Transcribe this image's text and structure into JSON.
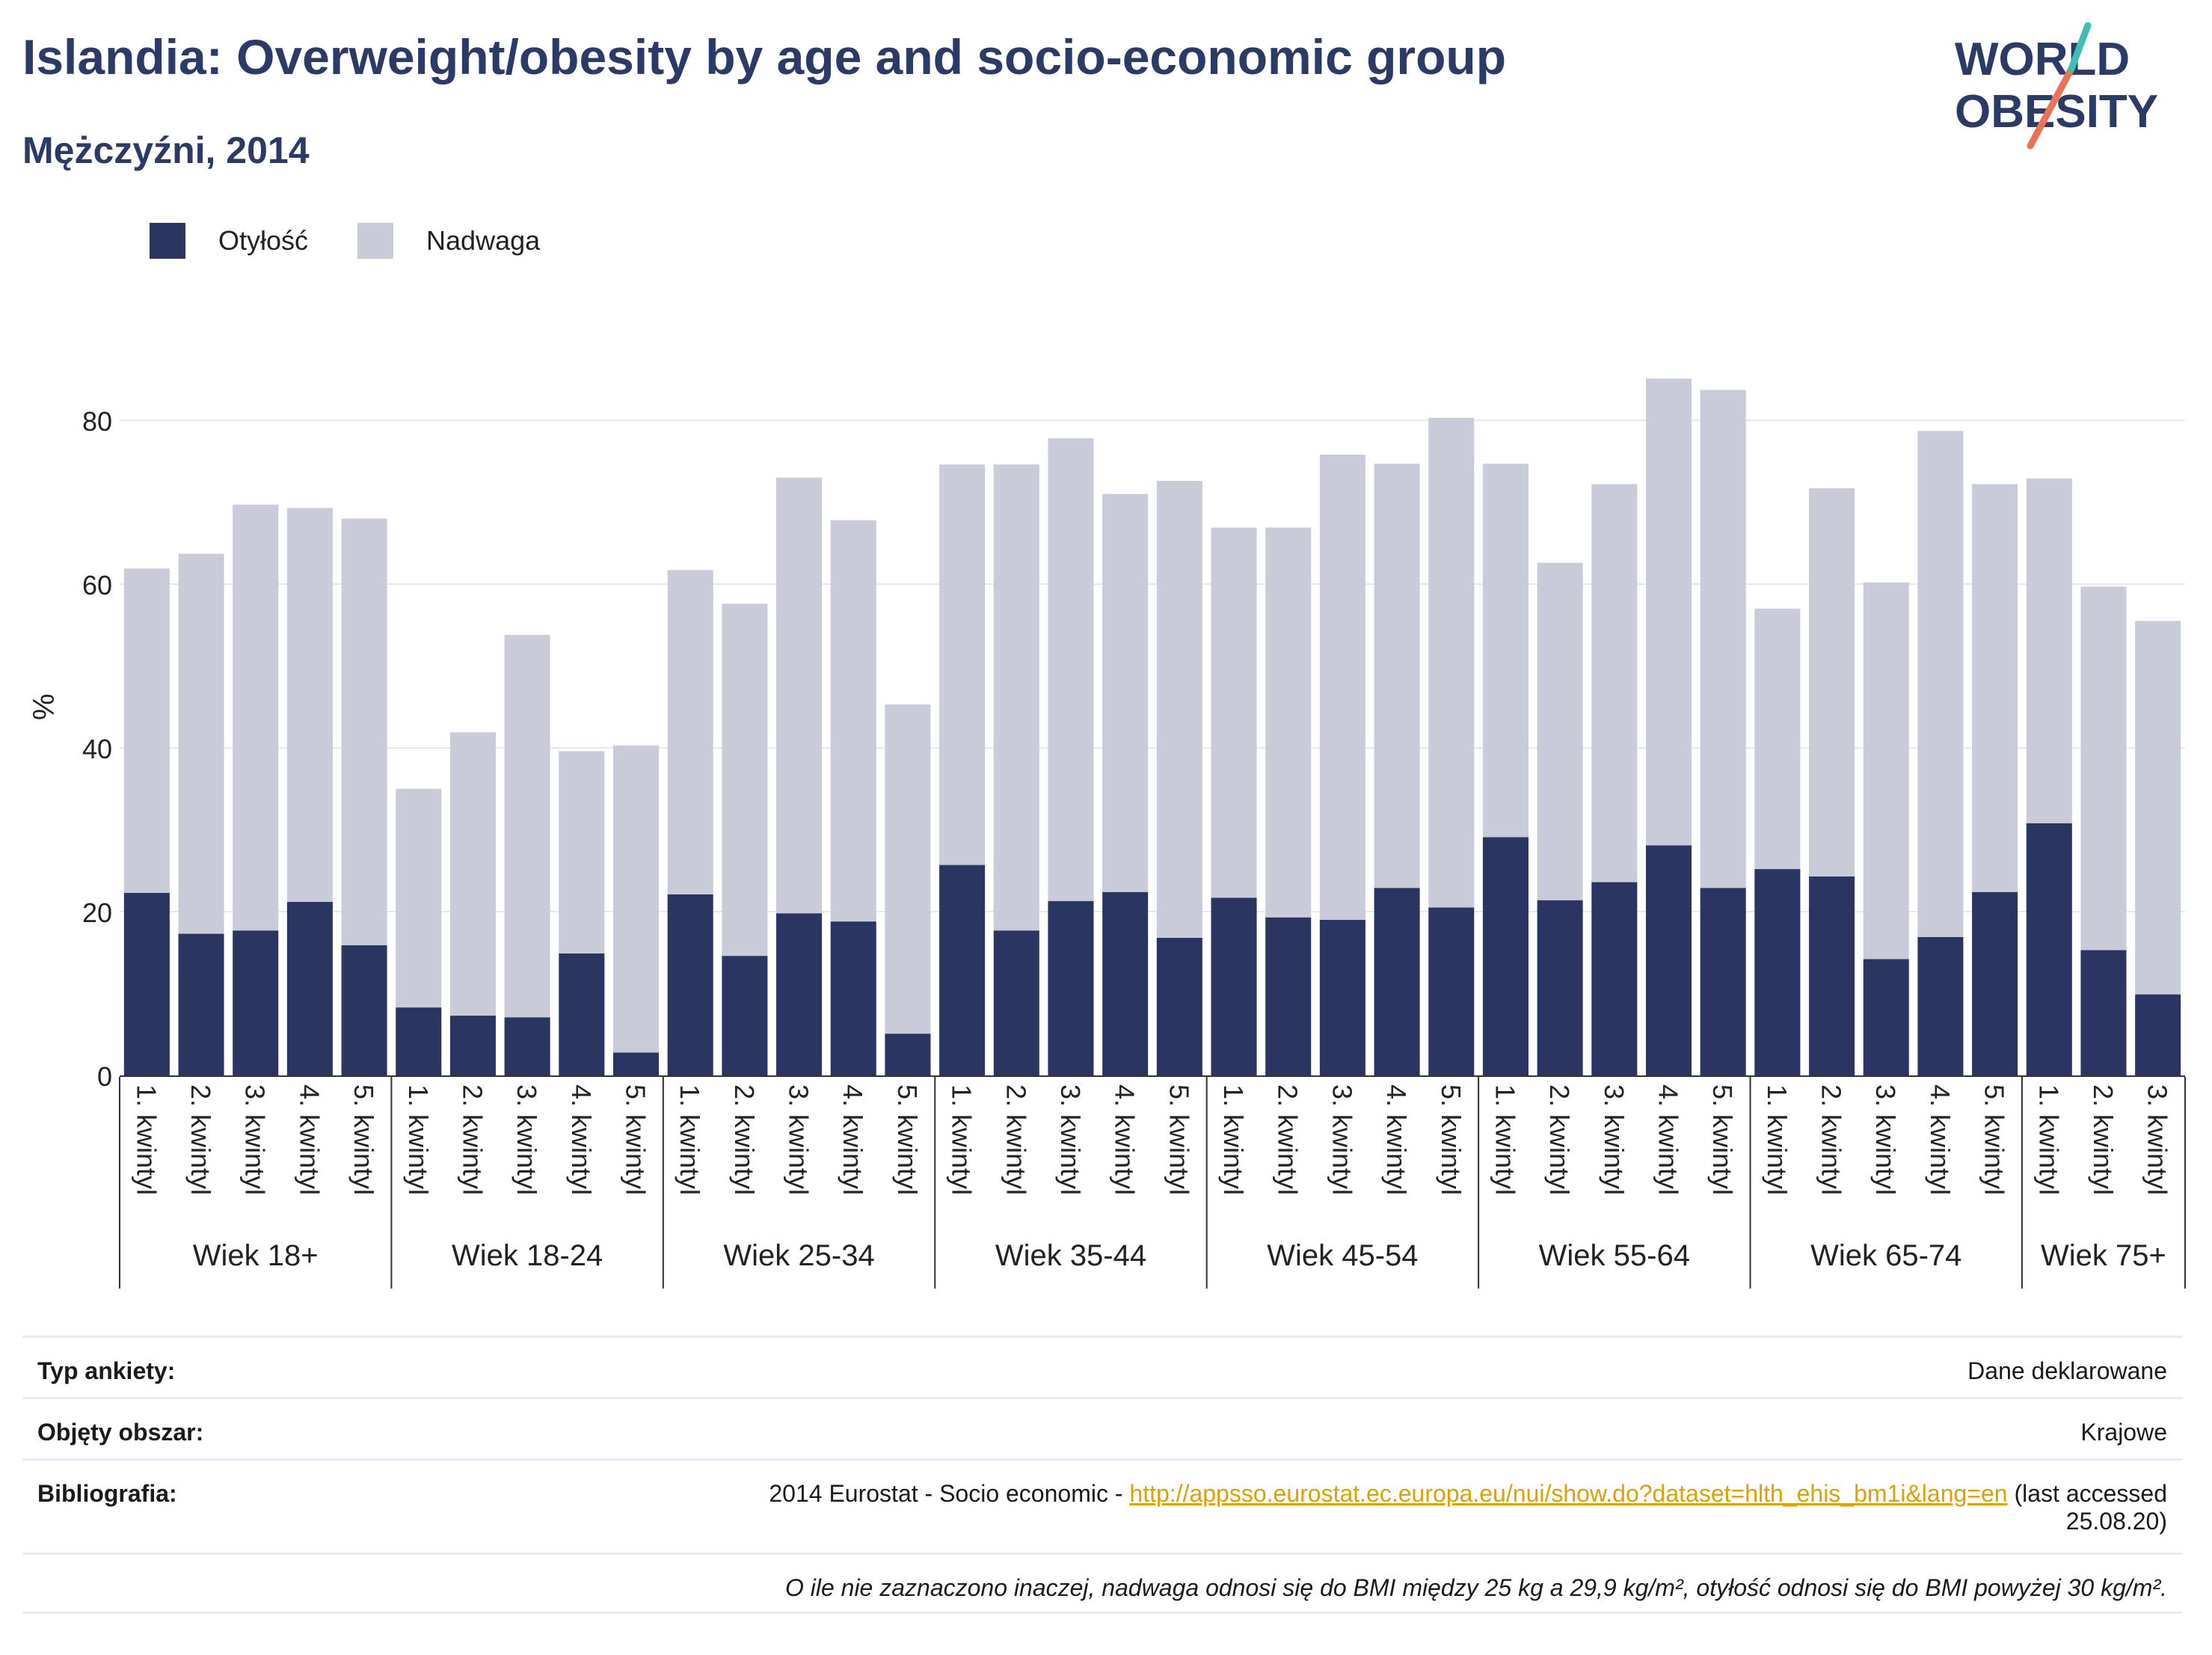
{
  "header": {
    "title": "Islandia: Overweight/obesity by age and socio-economic group",
    "subtitle": "Mężczyźni, 2014"
  },
  "logo": {
    "line1": "WORLD",
    "line2": "OBESITY"
  },
  "colors": {
    "obesity": "#2b3562",
    "overweight": "#c9ccd8",
    "title": "#2b3a66",
    "link": "#e0a000"
  },
  "chart_data": {
    "type": "bar",
    "stacked": true,
    "ylabel": "%",
    "ylim": [
      0,
      90
    ],
    "yticks": [
      0,
      20,
      40,
      60,
      80
    ],
    "grid": true,
    "legend_position": "top-left",
    "series": [
      {
        "name": "Otyłość",
        "color": "#2b3562",
        "values": [
          22.3,
          17.3,
          17.7,
          21.2,
          15.9,
          8.3,
          7.3,
          7.1,
          14.9,
          2.8,
          22.1,
          14.6,
          19.8,
          18.8,
          5.1,
          25.7,
          17.7,
          21.3,
          22.4,
          16.8,
          21.7,
          19.3,
          19.0,
          22.9,
          20.5,
          29.1,
          21.4,
          23.6,
          28.1,
          22.9,
          25.2,
          24.3,
          14.2,
          16.9,
          22.4,
          30.8,
          15.3,
          9.9
        ]
      },
      {
        "name": "Nadwaga",
        "color": "#c9ccd8",
        "values": [
          39.6,
          46.4,
          52.0,
          48.1,
          52.1,
          26.7,
          34.6,
          46.7,
          24.7,
          37.5,
          39.6,
          43.0,
          53.2,
          49.0,
          40.2,
          48.9,
          56.9,
          56.5,
          48.6,
          55.8,
          45.2,
          47.6,
          56.8,
          51.8,
          59.8,
          45.6,
          41.2,
          48.6,
          57.0,
          60.8,
          31.8,
          47.4,
          46.0,
          61.8,
          49.8,
          42.1,
          44.4,
          45.6
        ]
      }
    ],
    "categories": [
      "1. kwintyl",
      "2. kwintyl",
      "3. kwintyl",
      "4. kwintyl",
      "5. kwintyl",
      "1. kwintyl",
      "2. kwintyl",
      "3. kwintyl",
      "4. kwintyl",
      "5. kwintyl",
      "1. kwintyl",
      "2. kwintyl",
      "3. kwintyl",
      "4. kwintyl",
      "5. kwintyl",
      "1. kwintyl",
      "2. kwintyl",
      "3. kwintyl",
      "4. kwintyl",
      "5. kwintyl",
      "1. kwintyl",
      "2. kwintyl",
      "3. kwintyl",
      "4. kwintyl",
      "5. kwintyl",
      "1. kwintyl",
      "2. kwintyl",
      "3. kwintyl",
      "4. kwintyl",
      "5. kwintyl",
      "1. kwintyl",
      "2. kwintyl",
      "3. kwintyl",
      "4. kwintyl",
      "5. kwintyl",
      "1. kwintyl",
      "2. kwintyl",
      "3. kwintyl"
    ],
    "groups": [
      {
        "label": "Wiek 18+",
        "count": 5
      },
      {
        "label": "Wiek 18-24",
        "count": 5
      },
      {
        "label": "Wiek 25-34",
        "count": 5
      },
      {
        "label": "Wiek 35-44",
        "count": 5
      },
      {
        "label": "Wiek 45-54",
        "count": 5
      },
      {
        "label": "Wiek 55-64",
        "count": 5
      },
      {
        "label": "Wiek 65-74",
        "count": 5
      },
      {
        "label": "Wiek 75+",
        "count": 3
      }
    ]
  },
  "info": {
    "survey_label": "Typ ankiety:",
    "survey_value": "Dane deklarowane",
    "area_label": "Objęty obszar:",
    "area_value": "Krajowe",
    "bib_label": "Bibliografia:",
    "bib_prefix": "2014 Eurostat - Socio economic - ",
    "bib_link": "http://appsso.eurostat.ec.europa.eu/nui/show.do?dataset=hlth_ehis_bm1i&lang=en",
    "bib_suffix": " (last accessed",
    "bib_date": "25.08.20)",
    "note": "O ile nie zaznaczono inaczej, nadwaga odnosi się do BMI między 25 kg a 29,9 kg/m², otyłość odnosi się do BMI powyżej 30 kg/m²."
  }
}
